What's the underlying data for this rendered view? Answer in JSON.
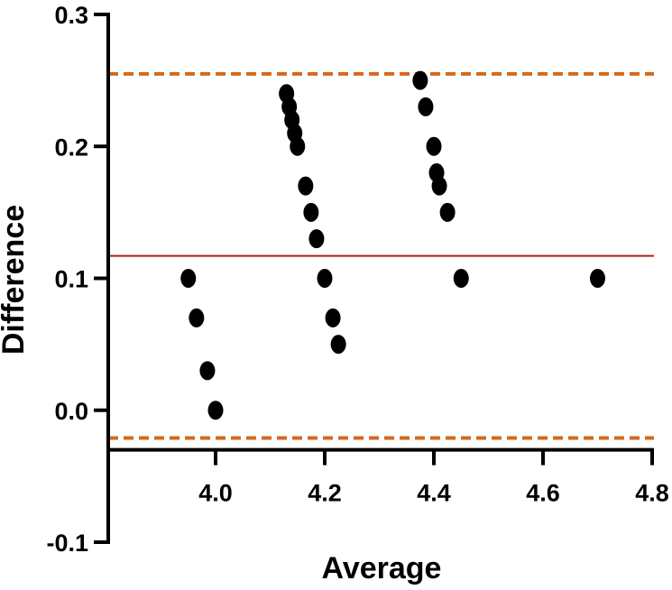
{
  "chart_data": {
    "type": "scatter",
    "title": "",
    "xlabel": "Average",
    "ylabel": "Difference",
    "xlim": [
      3.8,
      4.8
    ],
    "ylim": [
      -0.1,
      0.3
    ],
    "x_ticks": [
      4.0,
      4.2,
      4.4,
      4.6,
      4.8
    ],
    "x_tick_labels": [
      "4.0",
      "4.2",
      "4.4",
      "4.6",
      "4.8"
    ],
    "y_ticks": [
      -0.1,
      0.0,
      0.1,
      0.2,
      0.3
    ],
    "y_tick_labels": [
      "-0.1",
      "0.0",
      "0.1",
      "0.2",
      "0.3"
    ],
    "grid": false,
    "x_axis_at_y": -0.03,
    "points": [
      {
        "x": 3.95,
        "y": 0.1
      },
      {
        "x": 3.965,
        "y": 0.07
      },
      {
        "x": 3.985,
        "y": 0.03
      },
      {
        "x": 4.0,
        "y": 0.0
      },
      {
        "x": 4.13,
        "y": 0.24
      },
      {
        "x": 4.135,
        "y": 0.23
      },
      {
        "x": 4.14,
        "y": 0.22
      },
      {
        "x": 4.145,
        "y": 0.21
      },
      {
        "x": 4.15,
        "y": 0.2
      },
      {
        "x": 4.165,
        "y": 0.17
      },
      {
        "x": 4.175,
        "y": 0.15
      },
      {
        "x": 4.185,
        "y": 0.13
      },
      {
        "x": 4.2,
        "y": 0.1
      },
      {
        "x": 4.215,
        "y": 0.07
      },
      {
        "x": 4.225,
        "y": 0.05
      },
      {
        "x": 4.375,
        "y": 0.25
      },
      {
        "x": 4.385,
        "y": 0.23
      },
      {
        "x": 4.4,
        "y": 0.2
      },
      {
        "x": 4.405,
        "y": 0.18
      },
      {
        "x": 4.41,
        "y": 0.17
      },
      {
        "x": 4.425,
        "y": 0.15
      },
      {
        "x": 4.45,
        "y": 0.1
      },
      {
        "x": 4.7,
        "y": 0.1
      }
    ],
    "reference_lines": [
      {
        "kind": "mean",
        "y": 0.117,
        "color": "#b01c1c",
        "style": "solid"
      },
      {
        "kind": "upper-limit",
        "y": 0.255,
        "color": "#d2691e",
        "style": "dashed"
      },
      {
        "kind": "lower-limit",
        "y": -0.021,
        "color": "#d2691e",
        "style": "dashed"
      }
    ],
    "colors": {
      "points": "#000000",
      "axes": "#000000"
    }
  }
}
